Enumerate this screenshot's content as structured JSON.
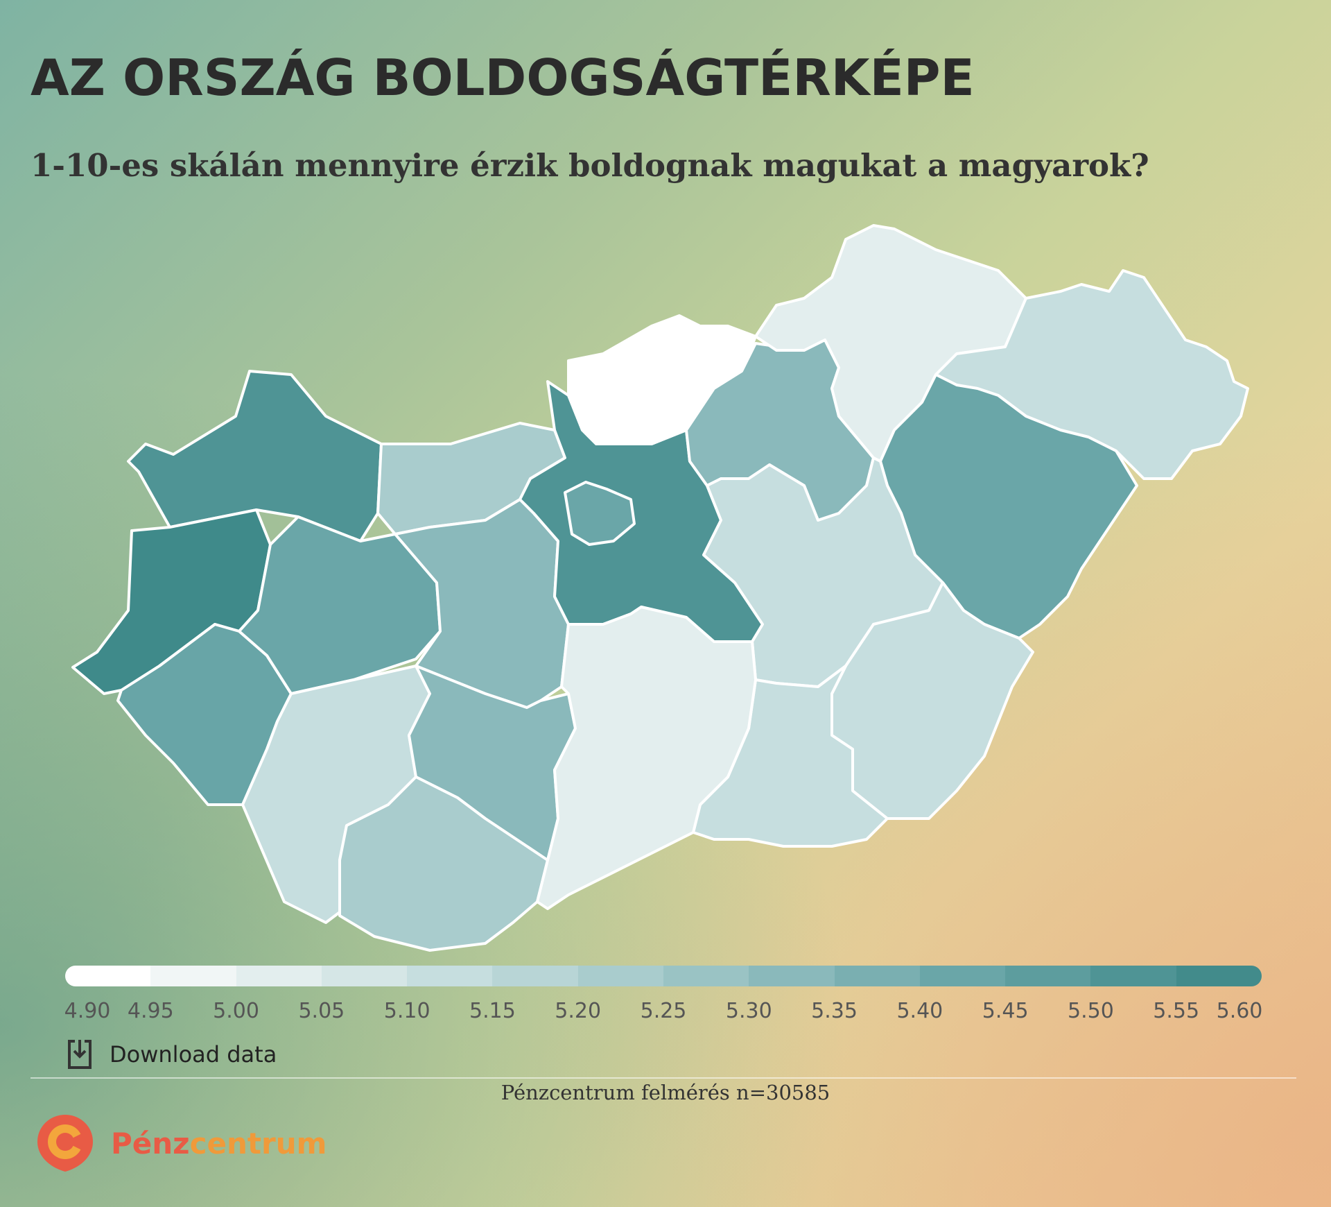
{
  "header": {
    "title": "AZ ORSZÁG BOLDOGSÁGTÉRKÉPE",
    "subtitle": "1-10-es skálán mennyire érzik boldognak magukat a magyarok?"
  },
  "map": {
    "boundary_color": "#ffffff",
    "regions": [
      {
        "id": "gyor-moson-sopron",
        "fill": "#4f9495"
      },
      {
        "id": "vas",
        "fill": "#3f8a8a"
      },
      {
        "id": "zala",
        "fill": "#68a5a7"
      },
      {
        "id": "veszprem",
        "fill": "#6aa6a8"
      },
      {
        "id": "komarom-esztergom",
        "fill": "#a9cccd"
      },
      {
        "id": "fejer",
        "fill": "#8ab9bb"
      },
      {
        "id": "somogy",
        "fill": "#c6dedf"
      },
      {
        "id": "tolna",
        "fill": "#8ab9bb"
      },
      {
        "id": "baranya",
        "fill": "#a9cccd"
      },
      {
        "id": "pest",
        "fill": "#4f9495"
      },
      {
        "id": "budapest",
        "fill": "#6aa6a8"
      },
      {
        "id": "nograd",
        "fill": "#ffffff"
      },
      {
        "id": "heves",
        "fill": "#8ab9bb"
      },
      {
        "id": "borsod-abauj-zemplen",
        "fill": "#e3eeee"
      },
      {
        "id": "szabolcs-szatmar-bereg",
        "fill": "#c6dedf"
      },
      {
        "id": "hajdu-bihar",
        "fill": "#6aa6a8"
      },
      {
        "id": "jasz-nagykun-szolnok",
        "fill": "#c6dedf"
      },
      {
        "id": "bekes",
        "fill": "#c6dedf"
      },
      {
        "id": "csongrad",
        "fill": "#c6dedf"
      },
      {
        "id": "bacs-kiskun",
        "fill": "#e3eeee"
      }
    ]
  },
  "legend": {
    "colors": [
      "#ffffff",
      "#f1f6f6",
      "#e3eeee",
      "#d5e6e6",
      "#c6dedf",
      "#b8d5d6",
      "#a9cccd",
      "#9ac3c4",
      "#8ab9bb",
      "#7aafb1",
      "#6aa6a8",
      "#5d9d9e",
      "#4f9495",
      "#428b8b"
    ],
    "labels": [
      "4.90",
      "4.95",
      "5.00",
      "5.05",
      "5.10",
      "5.15",
      "5.20",
      "5.25",
      "5.30",
      "5.35",
      "5.40",
      "5.45",
      "5.50",
      "5.55",
      "5.60"
    ],
    "min": 4.9,
    "max": 5.6
  },
  "download": {
    "label": "Download data",
    "icon": "download-icon"
  },
  "source": "Pénzcentrum felmérés n=30585",
  "logo": {
    "part1": "Pénz",
    "part2": "centrum",
    "icon": "penzcentrum-logo-icon"
  }
}
